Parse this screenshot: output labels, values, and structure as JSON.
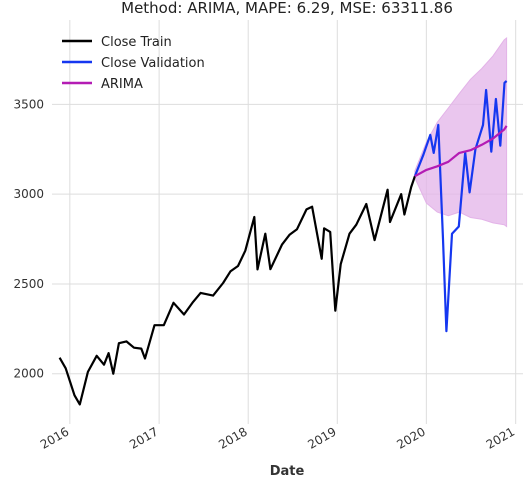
{
  "chart_data": {
    "type": "line",
    "title": "Method: ARIMA, MAPE: 6.29, MSE: 63311.86",
    "xlabel": "Date",
    "ylabel": "",
    "x_ticks": [
      "2016",
      "2017",
      "2018",
      "2019",
      "2020",
      "2021"
    ],
    "y_ticks": [
      2000,
      2500,
      3000,
      3500
    ],
    "xlim": [
      "2015-10-20",
      "2021-01-31"
    ],
    "ylim": [
      1720,
      3970
    ],
    "grid": true,
    "legend_position": "top-left",
    "series": [
      {
        "name": "Close Train",
        "color": "#000000",
        "points": [
          [
            "2015-11-20",
            2089
          ],
          [
            "2015-12-15",
            2030
          ],
          [
            "2016-01-20",
            1880
          ],
          [
            "2016-02-11",
            1829
          ],
          [
            "2016-03-15",
            2010
          ],
          [
            "2016-04-20",
            2100
          ],
          [
            "2016-05-20",
            2050
          ],
          [
            "2016-06-08",
            2115
          ],
          [
            "2016-06-27",
            2000
          ],
          [
            "2016-07-20",
            2170
          ],
          [
            "2016-08-20",
            2180
          ],
          [
            "2016-09-20",
            2145
          ],
          [
            "2016-10-20",
            2140
          ],
          [
            "2016-11-04",
            2085
          ],
          [
            "2016-12-13",
            2270
          ],
          [
            "2017-01-20",
            2270
          ],
          [
            "2017-03-01",
            2395
          ],
          [
            "2017-04-13",
            2330
          ],
          [
            "2017-05-20",
            2400
          ],
          [
            "2017-06-20",
            2450
          ],
          [
            "2017-08-10",
            2435
          ],
          [
            "2017-09-20",
            2505
          ],
          [
            "2017-10-20",
            2570
          ],
          [
            "2017-11-20",
            2600
          ],
          [
            "2017-12-20",
            2685
          ],
          [
            "2018-01-26",
            2873
          ],
          [
            "2018-02-08",
            2581
          ],
          [
            "2018-03-12",
            2780
          ],
          [
            "2018-04-02",
            2582
          ],
          [
            "2018-05-20",
            2720
          ],
          [
            "2018-06-20",
            2775
          ],
          [
            "2018-07-20",
            2805
          ],
          [
            "2018-08-28",
            2915
          ],
          [
            "2018-09-20",
            2930
          ],
          [
            "2018-10-29",
            2640
          ],
          [
            "2018-11-08",
            2810
          ],
          [
            "2018-12-03",
            2790
          ],
          [
            "2018-12-24",
            2351
          ],
          [
            "2019-01-15",
            2610
          ],
          [
            "2019-02-20",
            2780
          ],
          [
            "2019-03-20",
            2830
          ],
          [
            "2019-04-30",
            2945
          ],
          [
            "2019-06-03",
            2744
          ],
          [
            "2019-07-26",
            3025
          ],
          [
            "2019-08-05",
            2845
          ],
          [
            "2019-09-20",
            3000
          ],
          [
            "2019-10-03",
            2887
          ],
          [
            "2019-10-31",
            3040
          ],
          [
            "2019-11-15",
            3100
          ]
        ]
      },
      {
        "name": "Close Validation",
        "color": "#1537f0",
        "points": [
          [
            "2019-11-15",
            3100
          ],
          [
            "2019-12-20",
            3220
          ],
          [
            "2020-01-17",
            3330
          ],
          [
            "2020-01-31",
            3230
          ],
          [
            "2020-02-19",
            3386
          ],
          [
            "2020-03-09",
            2750
          ],
          [
            "2020-03-23",
            2237
          ],
          [
            "2020-04-15",
            2780
          ],
          [
            "2020-05-13",
            2820
          ],
          [
            "2020-06-08",
            3232
          ],
          [
            "2020-06-26",
            3010
          ],
          [
            "2020-07-20",
            3250
          ],
          [
            "2020-08-20",
            3385
          ],
          [
            "2020-09-02",
            3580
          ],
          [
            "2020-09-23",
            3237
          ],
          [
            "2020-10-12",
            3530
          ],
          [
            "2020-10-30",
            3270
          ],
          [
            "2020-11-16",
            3620
          ],
          [
            "2020-11-25",
            3630
          ]
        ]
      },
      {
        "name": "ARIMA",
        "color": "#b41cb4",
        "points": [
          [
            "2019-11-15",
            3100
          ],
          [
            "2020-01-01",
            3135
          ],
          [
            "2020-02-15",
            3155
          ],
          [
            "2020-03-31",
            3180
          ],
          [
            "2020-05-15",
            3230
          ],
          [
            "2020-06-30",
            3245
          ],
          [
            "2020-08-15",
            3275
          ],
          [
            "2020-09-30",
            3310
          ],
          [
            "2020-11-15",
            3360
          ],
          [
            "2020-11-25",
            3380
          ]
        ],
        "band": {
          "color": "#e3b3e8",
          "points": [
            [
              "2019-11-15",
              3090,
              3130
            ],
            [
              "2020-01-01",
              2950,
              3290
            ],
            [
              "2020-02-15",
              2900,
              3400
            ],
            [
              "2020-03-31",
              2880,
              3480
            ],
            [
              "2020-05-15",
              2900,
              3560
            ],
            [
              "2020-06-30",
              2870,
              3640
            ],
            [
              "2020-08-15",
              2860,
              3700
            ],
            [
              "2020-09-30",
              2840,
              3770
            ],
            [
              "2020-11-15",
              2830,
              3860
            ],
            [
              "2020-11-25",
              2820,
              3870
            ]
          ]
        }
      }
    ]
  }
}
